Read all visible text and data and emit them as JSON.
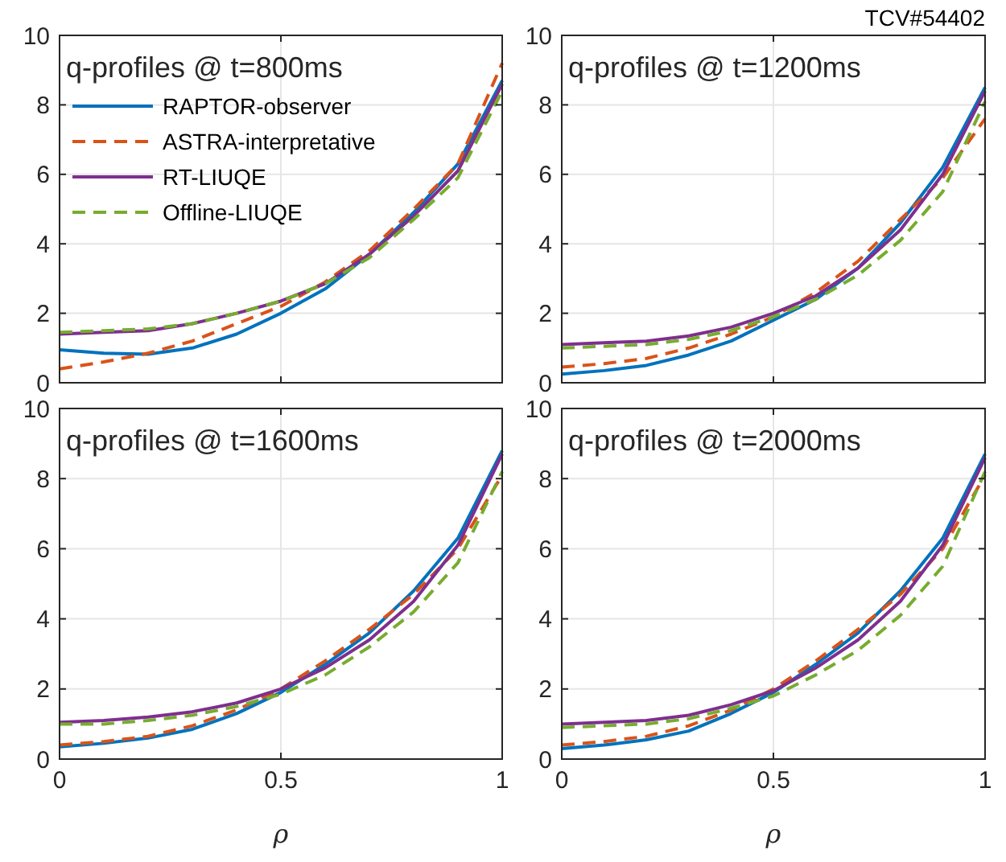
{
  "chart_data": [
    {
      "type": "line",
      "title": "q-profiles @ t=800ms",
      "x": [
        0,
        0.1,
        0.2,
        0.3,
        0.4,
        0.5,
        0.6,
        0.7,
        0.8,
        0.9,
        1
      ],
      "xlim": [
        0,
        1
      ],
      "xticks": [
        0,
        0.5,
        1
      ],
      "ylim": [
        0,
        10
      ],
      "yticks": [
        0,
        2,
        4,
        6,
        8,
        10
      ],
      "grid": true,
      "tick_labels": "y",
      "legend": "top left",
      "series": [
        {
          "name": "RAPTOR-observer",
          "color": "#0072bd",
          "line_style": "solid",
          "values": [
            0.95,
            0.85,
            0.82,
            1.0,
            1.4,
            2.0,
            2.7,
            3.7,
            4.9,
            6.3,
            8.7
          ]
        },
        {
          "name": "ASTRA-interpretative",
          "color": "#d95319",
          "line_style": "dashed",
          "values": [
            0.4,
            0.6,
            0.85,
            1.2,
            1.7,
            2.2,
            2.9,
            3.8,
            5.0,
            6.3,
            9.2
          ]
        },
        {
          "name": "RT-LIUQE",
          "color": "#7e2f8e",
          "line_style": "solid",
          "values": [
            1.4,
            1.45,
            1.5,
            1.7,
            2.0,
            2.35,
            2.85,
            3.7,
            4.8,
            6.1,
            8.6
          ]
        },
        {
          "name": "Offline-LIUQE",
          "color": "#77ac30",
          "line_style": "dashed",
          "values": [
            1.45,
            1.5,
            1.55,
            1.7,
            2.0,
            2.35,
            2.85,
            3.6,
            4.7,
            5.9,
            8.4
          ]
        }
      ]
    },
    {
      "type": "line",
      "title": "q-profiles @ t=1200ms",
      "annotations": [
        "TCV#54402"
      ],
      "x": [
        0,
        0.1,
        0.2,
        0.3,
        0.4,
        0.5,
        0.6,
        0.7,
        0.8,
        0.9,
        1
      ],
      "xlim": [
        0,
        1
      ],
      "xticks": [
        0,
        0.5,
        1
      ],
      "ylim": [
        0,
        10
      ],
      "yticks": [
        0,
        2,
        4,
        6,
        8,
        10
      ],
      "grid": true,
      "tick_labels": "y",
      "legend": false,
      "series": [
        {
          "color": "#0072bd",
          "line_style": "solid",
          "values": [
            0.25,
            0.35,
            0.5,
            0.8,
            1.2,
            1.8,
            2.4,
            3.3,
            4.6,
            6.2,
            8.5
          ]
        },
        {
          "color": "#d95319",
          "line_style": "dashed",
          "values": [
            0.45,
            0.55,
            0.7,
            1.0,
            1.4,
            1.9,
            2.6,
            3.5,
            4.7,
            5.9,
            7.6
          ]
        },
        {
          "color": "#7e2f8e",
          "line_style": "solid",
          "values": [
            1.1,
            1.15,
            1.2,
            1.35,
            1.6,
            2.0,
            2.5,
            3.3,
            4.4,
            6.0,
            8.4
          ]
        },
        {
          "color": "#77ac30",
          "line_style": "dashed",
          "values": [
            1.0,
            1.05,
            1.1,
            1.25,
            1.5,
            1.9,
            2.4,
            3.1,
            4.1,
            5.5,
            8.1
          ]
        }
      ]
    },
    {
      "type": "line",
      "title": "q-profiles @ t=1600ms",
      "xlabel": "ρ",
      "x": [
        0,
        0.1,
        0.2,
        0.3,
        0.4,
        0.5,
        0.6,
        0.7,
        0.8,
        0.9,
        1
      ],
      "xlim": [
        0,
        1
      ],
      "xticks": [
        0,
        0.5,
        1
      ],
      "ylim": [
        0,
        10
      ],
      "yticks": [
        0,
        2,
        4,
        6,
        8,
        10
      ],
      "grid": true,
      "legend": false,
      "series": [
        {
          "color": "#0072bd",
          "line_style": "solid",
          "values": [
            0.35,
            0.45,
            0.6,
            0.85,
            1.3,
            1.9,
            2.7,
            3.6,
            4.8,
            6.3,
            8.8
          ]
        },
        {
          "color": "#d95319",
          "line_style": "dashed",
          "values": [
            0.4,
            0.5,
            0.65,
            0.95,
            1.4,
            2.0,
            2.8,
            3.7,
            4.7,
            6.0,
            8.1
          ]
        },
        {
          "color": "#7e2f8e",
          "line_style": "solid",
          "values": [
            1.05,
            1.1,
            1.2,
            1.35,
            1.6,
            2.0,
            2.6,
            3.4,
            4.5,
            6.1,
            8.7
          ]
        },
        {
          "color": "#77ac30",
          "line_style": "dashed",
          "values": [
            1.0,
            1.0,
            1.1,
            1.25,
            1.5,
            1.85,
            2.4,
            3.2,
            4.2,
            5.6,
            8.2
          ]
        }
      ]
    },
    {
      "type": "line",
      "title": "q-profiles @ t=2000ms",
      "xlabel": "ρ",
      "x": [
        0,
        0.1,
        0.2,
        0.3,
        0.4,
        0.5,
        0.6,
        0.7,
        0.8,
        0.9,
        1
      ],
      "xlim": [
        0,
        1
      ],
      "xticks": [
        0,
        0.5,
        1
      ],
      "ylim": [
        0,
        10
      ],
      "yticks": [
        0,
        2,
        4,
        6,
        8,
        10
      ],
      "grid": true,
      "legend": false,
      "series": [
        {
          "color": "#0072bd",
          "line_style": "solid",
          "values": [
            0.3,
            0.4,
            0.55,
            0.8,
            1.3,
            1.9,
            2.7,
            3.6,
            4.8,
            6.3,
            8.7
          ]
        },
        {
          "color": "#d95319",
          "line_style": "dashed",
          "values": [
            0.4,
            0.5,
            0.65,
            0.95,
            1.4,
            2.0,
            2.8,
            3.7,
            4.7,
            6.0,
            8.1
          ]
        },
        {
          "color": "#7e2f8e",
          "line_style": "solid",
          "values": [
            1.0,
            1.05,
            1.1,
            1.25,
            1.55,
            1.95,
            2.6,
            3.4,
            4.5,
            6.1,
            8.6
          ]
        },
        {
          "color": "#77ac30",
          "line_style": "dashed",
          "values": [
            0.9,
            0.95,
            1.0,
            1.15,
            1.45,
            1.8,
            2.4,
            3.1,
            4.1,
            5.5,
            8.2
          ]
        }
      ]
    }
  ]
}
